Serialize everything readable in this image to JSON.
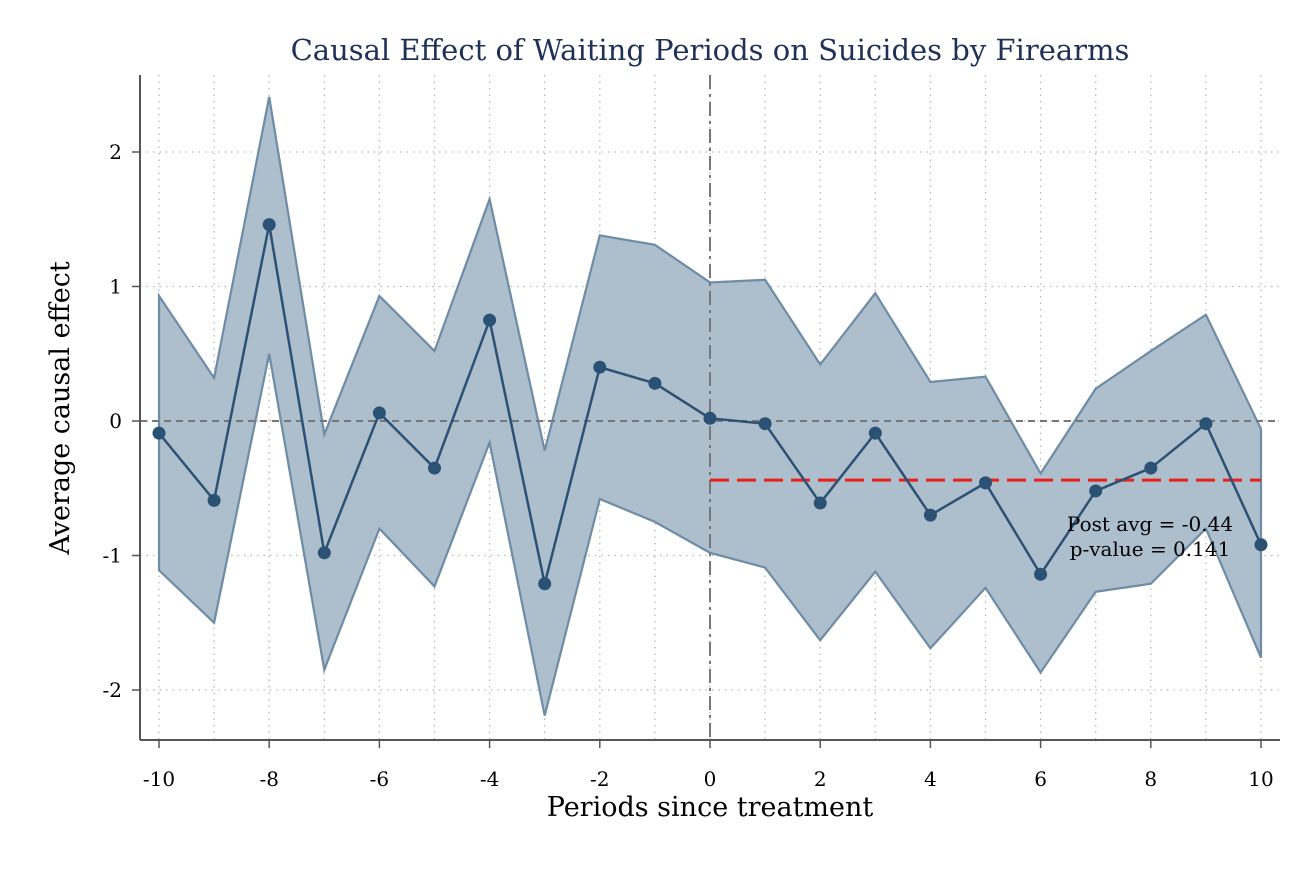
{
  "chart_data": {
    "type": "line",
    "title": "Causal Effect of Waiting Periods on Suicides by Firearms",
    "xlabel": "Periods since treatment",
    "ylabel": "Average causal effect",
    "xlim": [
      -10,
      10
    ],
    "ylim": [
      -2.35,
      2.55
    ],
    "xticks": [
      -10,
      -8,
      -6,
      -4,
      -2,
      0,
      2,
      4,
      6,
      8,
      10
    ],
    "xtick_labels": [
      "-10",
      "-8",
      "-6",
      "-4",
      "-2",
      "0",
      "2",
      "4",
      "6",
      "8",
      "10"
    ],
    "yticks": [
      2,
      1,
      0,
      -1,
      -2
    ],
    "ytick_labels": [
      "2",
      "1",
      "0",
      "-1",
      "-2"
    ],
    "grid": true,
    "treatment_period": 0,
    "x": [
      -10,
      -9,
      -8,
      -7,
      -6,
      -5,
      -4,
      -3,
      -2,
      -1,
      0,
      1,
      2,
      3,
      4,
      5,
      6,
      7,
      8,
      9,
      10
    ],
    "estimate": [
      -0.09,
      -0.59,
      1.46,
      -0.98,
      0.06,
      -0.35,
      0.75,
      -1.21,
      0.4,
      0.28,
      0.02,
      -0.02,
      -0.61,
      -0.09,
      -0.7,
      -0.46,
      -1.14,
      -0.52,
      -0.35,
      -0.02,
      -0.92
    ],
    "ci_upper": [
      0.93,
      0.32,
      2.41,
      -0.1,
      0.93,
      0.52,
      1.65,
      -0.22,
      1.38,
      1.31,
      1.03,
      1.05,
      0.42,
      0.95,
      0.29,
      0.33,
      -0.39,
      0.24,
      0.52,
      0.79,
      -0.06
    ],
    "ci_lower": [
      -1.11,
      -1.5,
      0.5,
      -1.85,
      -0.8,
      -1.23,
      -0.16,
      -2.19,
      -0.58,
      -0.75,
      -0.98,
      -1.09,
      -1.63,
      -1.12,
      -1.69,
      -1.24,
      -1.87,
      -1.27,
      -1.21,
      -0.8,
      -1.76
    ],
    "post_avg": -0.44,
    "annotation": {
      "line1": "Post avg = -0.44",
      "line2": "p-value = 0.141"
    },
    "colors": {
      "title": "#1f3157",
      "line": "#2b5275",
      "band_fill": "#adbecd",
      "band_edge": "#6f8ca6",
      "post_avg_line": "#e8201c",
      "zero_line": "#777777",
      "treatment_line": "#777777",
      "grid": "#b8b8b8",
      "axis": "#555555"
    }
  }
}
